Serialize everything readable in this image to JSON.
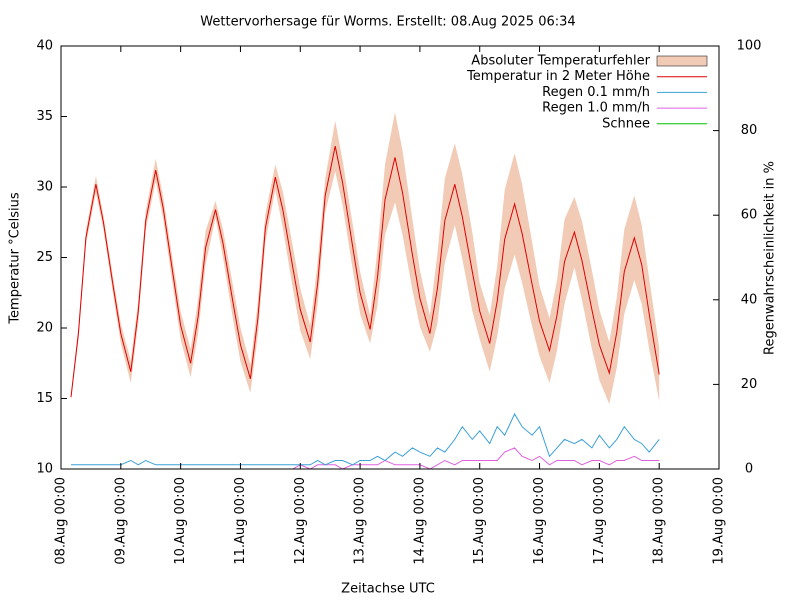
{
  "chart_data": {
    "type": "line",
    "title": "Wettervorhersage für Worms. Erstellt: 08.Aug 2025 06:34",
    "x_label": "Zeitachse UTC",
    "y_label": "Temperatur °Celsius",
    "y2_label": "Regenwahrscheinlichkeit in %",
    "legend": "upper right",
    "x": [
      4,
      7,
      10,
      14,
      17,
      21,
      24,
      28,
      31,
      34,
      38,
      41,
      45,
      48,
      52,
      55,
      58,
      62,
      65,
      69,
      72,
      76,
      79,
      82,
      86,
      89,
      93,
      96,
      100,
      103,
      106,
      110,
      113,
      117,
      120,
      124,
      127,
      130,
      134,
      137,
      141,
      144,
      148,
      151,
      154,
      158,
      161,
      165,
      168,
      172,
      175,
      178,
      182,
      185,
      189,
      192,
      196,
      199,
      202,
      206,
      209,
      213,
      216,
      220,
      223,
      226,
      230,
      233,
      236,
      240
    ],
    "xlim": [
      0,
      264
    ],
    "xticks": [
      {
        "value": 0,
        "label": "08.Aug 00:00"
      },
      {
        "value": 24,
        "label": "09.Aug 00:00"
      },
      {
        "value": 48,
        "label": "10.Aug 00:00"
      },
      {
        "value": 72,
        "label": "11.Aug 00:00"
      },
      {
        "value": 96,
        "label": "12.Aug 00:00"
      },
      {
        "value": 120,
        "label": "13.Aug 00:00"
      },
      {
        "value": 144,
        "label": "14.Aug 00:00"
      },
      {
        "value": 168,
        "label": "15.Aug 00:00"
      },
      {
        "value": 192,
        "label": "16.Aug 00:00"
      },
      {
        "value": 216,
        "label": "17.Aug 00:00"
      },
      {
        "value": 240,
        "label": "18.Aug 00:00"
      },
      {
        "value": 264,
        "label": "19.Aug 00:00"
      }
    ],
    "ylim": [
      10,
      40
    ],
    "yticks": [
      10,
      15,
      20,
      25,
      30,
      35,
      40
    ],
    "y2lim": [
      0,
      100
    ],
    "y2ticks": [
      0,
      20,
      40,
      60,
      80,
      100
    ],
    "band": {
      "name": "Absoluter Temperaturfehler",
      "color": "#f2cbb7",
      "values": [
        0.2,
        0.5,
        0.5,
        0.6,
        0.5,
        0.6,
        0.7,
        0.8,
        0.8,
        0.7,
        0.8,
        0.8,
        0.9,
        1.0,
        1.0,
        1.2,
        1.2,
        0.6,
        1.0,
        1.2,
        1.2,
        1.0,
        1.2,
        1.0,
        0.9,
        1.3,
        1.5,
        1.5,
        1.2,
        1.5,
        1.2,
        1.8,
        1.6,
        1.6,
        1.5,
        1.0,
        2.0,
        2.5,
        3.2,
        3.0,
        2.5,
        2.0,
        1.3,
        2.5,
        3.0,
        2.9,
        3.0,
        2.8,
        2.0,
        2.0,
        2.5,
        3.5,
        3.6,
        3.5,
        3.0,
        2.5,
        2.3,
        2.5,
        3.0,
        2.5,
        2.8,
        2.8,
        2.5,
        2.2,
        2.5,
        3.0,
        3.0,
        2.8,
        2.5,
        1.9
      ]
    },
    "series": [
      {
        "name": "Temperatur in 2 Meter Höhe",
        "color": "#e00000",
        "values": [
          15.1,
          19.6,
          26.4,
          30.2,
          27.5,
          22.9,
          19.6,
          16.9,
          21.2,
          27.6,
          31.2,
          28.5,
          23.7,
          20.2,
          17.5,
          20.8,
          25.7,
          28.4,
          26.0,
          21.8,
          18.8,
          16.4,
          20.7,
          27.1,
          30.7,
          28.4,
          24.3,
          21.3,
          19.0,
          23.2,
          29.4,
          32.9,
          30.3,
          25.8,
          22.5,
          19.9,
          23.6,
          29.1,
          32.1,
          29.6,
          25.2,
          22.1,
          19.6,
          22.8,
          27.6,
          30.2,
          27.9,
          24.0,
          21.2,
          18.9,
          21.9,
          26.3,
          28.8,
          26.7,
          23.1,
          20.5,
          18.4,
          20.9,
          24.7,
          26.8,
          24.8,
          21.3,
          18.8,
          16.8,
          19.7,
          24.0,
          26.4,
          24.5,
          21.0,
          16.7
        ]
      },
      {
        "name": "Regen 0.1 mm/h",
        "color": "#3aa0d8",
        "axis": "y2",
        "values": [
          1,
          1,
          1,
          1,
          1,
          1,
          1,
          2,
          1,
          2,
          1,
          1,
          1,
          1,
          1,
          1,
          1,
          1,
          1,
          1,
          1,
          1,
          1,
          1,
          1,
          1,
          1,
          1,
          1,
          2,
          1,
          2,
          2,
          1,
          2,
          2,
          3,
          2,
          4,
          3,
          5,
          4,
          3,
          5,
          4,
          7,
          10,
          7,
          9,
          6,
          10,
          8,
          13,
          10,
          8,
          10,
          3,
          5,
          7,
          6,
          7,
          5,
          8,
          5,
          7,
          10,
          7,
          6,
          4,
          7
        ]
      },
      {
        "name": "Regen 1.0 mm/h",
        "color": "#e060e0",
        "axis": "y2",
        "values": [
          0,
          0,
          0,
          0,
          0,
          0,
          0,
          0,
          0,
          0,
          0,
          0,
          0,
          0,
          0,
          0,
          0,
          0,
          0,
          0,
          0,
          0,
          0,
          0,
          0,
          0,
          0,
          1,
          0,
          1,
          1,
          1,
          0,
          1,
          1,
          1,
          1,
          2,
          1,
          1,
          1,
          1,
          0,
          1,
          2,
          1,
          2,
          2,
          2,
          2,
          2,
          4,
          5,
          3,
          2,
          3,
          1,
          2,
          2,
          2,
          1,
          2,
          2,
          1,
          2,
          2,
          3,
          2,
          2,
          2
        ]
      },
      {
        "name": "Schnee",
        "color": "#00c000",
        "axis": "y2",
        "values": [
          0,
          0,
          0,
          0,
          0,
          0,
          0,
          0,
          0,
          0,
          0,
          0,
          0,
          0,
          0,
          0,
          0,
          0,
          0,
          0,
          0,
          0,
          0,
          0,
          0,
          0,
          0,
          0,
          0,
          0,
          0,
          0,
          0,
          0,
          0,
          0,
          0,
          0,
          0,
          0,
          0,
          0,
          0,
          0,
          0,
          0,
          0,
          0,
          0,
          0,
          0,
          0,
          0,
          0,
          0,
          0,
          0,
          0,
          0,
          0,
          0,
          0,
          0,
          0,
          0,
          0,
          0,
          0,
          0,
          0
        ]
      }
    ]
  }
}
